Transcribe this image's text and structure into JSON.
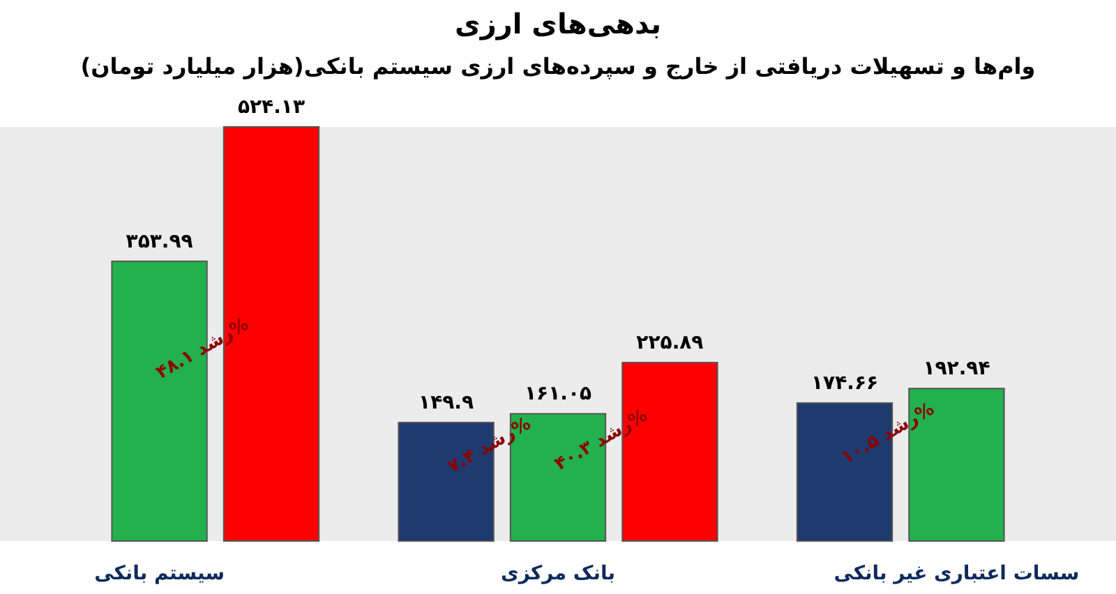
{
  "chart_data": {
    "type": "bar",
    "title": "بدهی‌های ارزی",
    "subtitle": "وام‌ها و تسهیلات دریافتی از خارج و سپرده‌های ارزی سیستم بانکی(هزار میلیارد تومان)",
    "categories": [
      "سیستم بانکی",
      "بانک مرکزی",
      "سسات اعتباری غیر بانکی"
    ],
    "series": [
      {
        "color": "#1f3a6e",
        "values": [
          null,
          149.9,
          174.66
        ],
        "value_labels": [
          null,
          "۱۴۹.۹",
          "۱۷۴.۶۶"
        ]
      },
      {
        "color": "#22b14c",
        "values": [
          353.99,
          161.05,
          192.94
        ],
        "value_labels": [
          "۳۵۳.۹۹",
          "۱۶۱.۰۵",
          "۱۹۲.۹۴"
        ]
      },
      {
        "color": "#ff0000",
        "values": [
          524.13,
          225.89,
          null
        ],
        "value_labels": [
          "۵۲۴.۱۳",
          "۲۲۵.۸۹",
          null
        ]
      }
    ],
    "annotations": [
      "رشد ۴۸.۱%",
      "رشد ۷.۴%",
      "رشد ۴۰.۳%",
      "رشد ۱۰.۵%"
    ],
    "legend": false,
    "tick_labels": "x"
  }
}
